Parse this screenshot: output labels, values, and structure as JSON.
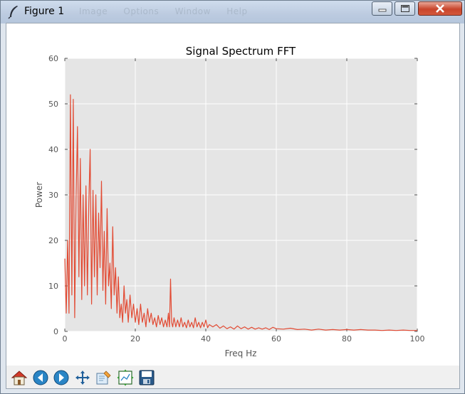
{
  "window": {
    "title": "Figure 1",
    "ghost_menu": [
      "Image",
      "Options",
      "Window",
      "Help"
    ],
    "title_icon": "feather-icon"
  },
  "toolbar": {
    "buttons": [
      {
        "name": "home-button",
        "icon": "home-icon"
      },
      {
        "name": "back-button",
        "icon": "arrow-left-icon"
      },
      {
        "name": "forward-button",
        "icon": "arrow-right-icon"
      },
      {
        "name": "pan-button",
        "icon": "move-arrows-icon"
      },
      {
        "name": "zoom-button",
        "icon": "zoom-rect-icon"
      },
      {
        "name": "subplots-button",
        "icon": "subplots-icon"
      },
      {
        "name": "save-button",
        "icon": "floppy-disk-icon"
      }
    ]
  },
  "chart_data": {
    "type": "line",
    "title": "Signal Spectrum FFT",
    "xlabel": "Freq Hz",
    "ylabel": "Power",
    "xlim": [
      0,
      100
    ],
    "ylim": [
      0,
      60
    ],
    "xticks": [
      0,
      20,
      40,
      60,
      80,
      100
    ],
    "yticks": [
      0,
      10,
      20,
      30,
      40,
      50,
      60
    ],
    "grid": true,
    "line_color": "#e24a33",
    "background_color": "#e5e5e5",
    "series": [
      {
        "x": [
          0,
          0.4,
          0.8,
          1.2,
          1.6,
          2.0,
          2.4,
          2.8,
          3.2,
          3.6,
          4.0,
          4.4,
          4.8,
          5.2,
          5.6,
          6.0,
          6.4,
          6.8,
          7.2,
          7.6,
          8.0,
          8.4,
          8.8,
          9.2,
          9.6,
          10.0,
          10.4,
          10.8,
          11.2,
          11.6,
          12.0,
          12.4,
          12.8,
          13.2,
          13.6,
          14.0,
          14.4,
          14.8,
          15.2,
          15.6,
          16.0,
          16.4,
          16.8,
          17.2,
          17.6,
          18.0,
          18.5,
          19.0,
          19.5,
          20.0,
          20.5,
          21.0,
          21.5,
          22.0,
          22.5,
          23.0,
          23.5,
          24.0,
          24.5,
          25.0,
          25.5,
          26.0,
          26.5,
          27.0,
          27.5,
          28.0,
          28.5,
          29.0,
          29.4,
          29.7,
          30.0,
          30.3,
          30.6,
          31.0,
          31.5,
          32.0,
          32.5,
          33.0,
          33.5,
          34.0,
          34.5,
          35.0,
          35.5,
          36.0,
          36.5,
          37.0,
          37.5,
          38.0,
          38.5,
          39.0,
          39.5,
          40.0,
          40.5,
          41.0,
          42.0,
          43.0,
          44.0,
          45.0,
          46.0,
          47.0,
          48.0,
          49.0,
          50.0,
          51.0,
          52.0,
          53.0,
          54.0,
          55.0,
          56.0,
          57.0,
          58.0,
          59.0,
          60.0,
          62.0,
          64.0,
          66.0,
          68.0,
          70.0,
          72.0,
          74.0,
          76.0,
          78.0,
          80.0,
          82.0,
          84.0,
          86.0,
          88.0,
          90.0,
          92.0,
          94.0,
          96.0,
          98.0,
          100.0
        ],
        "values": [
          16,
          4,
          20,
          4,
          52,
          8,
          51,
          3,
          29,
          45,
          12,
          38,
          7,
          30,
          10,
          32,
          8,
          28,
          40,
          6,
          31,
          12,
          30,
          8,
          26,
          14,
          33,
          9,
          22,
          6,
          27,
          10,
          15,
          5,
          23,
          8,
          14,
          4,
          12,
          3,
          6,
          2,
          10,
          4,
          7,
          2,
          8,
          3,
          6,
          2,
          5,
          1.5,
          6,
          2,
          4,
          1,
          5,
          2,
          4,
          1.5,
          3,
          1,
          3.5,
          1.5,
          3,
          1,
          2.5,
          1,
          4,
          1,
          11.5,
          2,
          1,
          3,
          1,
          2.5,
          1,
          3,
          1,
          2,
          0.8,
          2.5,
          1,
          2,
          0.8,
          3,
          1,
          2,
          0.8,
          2,
          1,
          2.5,
          0.8,
          1.5,
          1,
          1.5,
          0.7,
          1.2,
          0.6,
          1,
          0.5,
          1.2,
          0.6,
          1,
          0.5,
          0.9,
          0.5,
          0.8,
          0.5,
          0.8,
          0.4,
          0.9,
          0.6,
          0.5,
          0.7,
          0.4,
          0.5,
          0.3,
          0.5,
          0.3,
          0.4,
          0.3,
          0.4,
          0.3,
          0.4,
          0.3,
          0.3,
          0.2,
          0.3,
          0.2,
          0.3,
          0.2,
          0.2
        ]
      }
    ]
  }
}
